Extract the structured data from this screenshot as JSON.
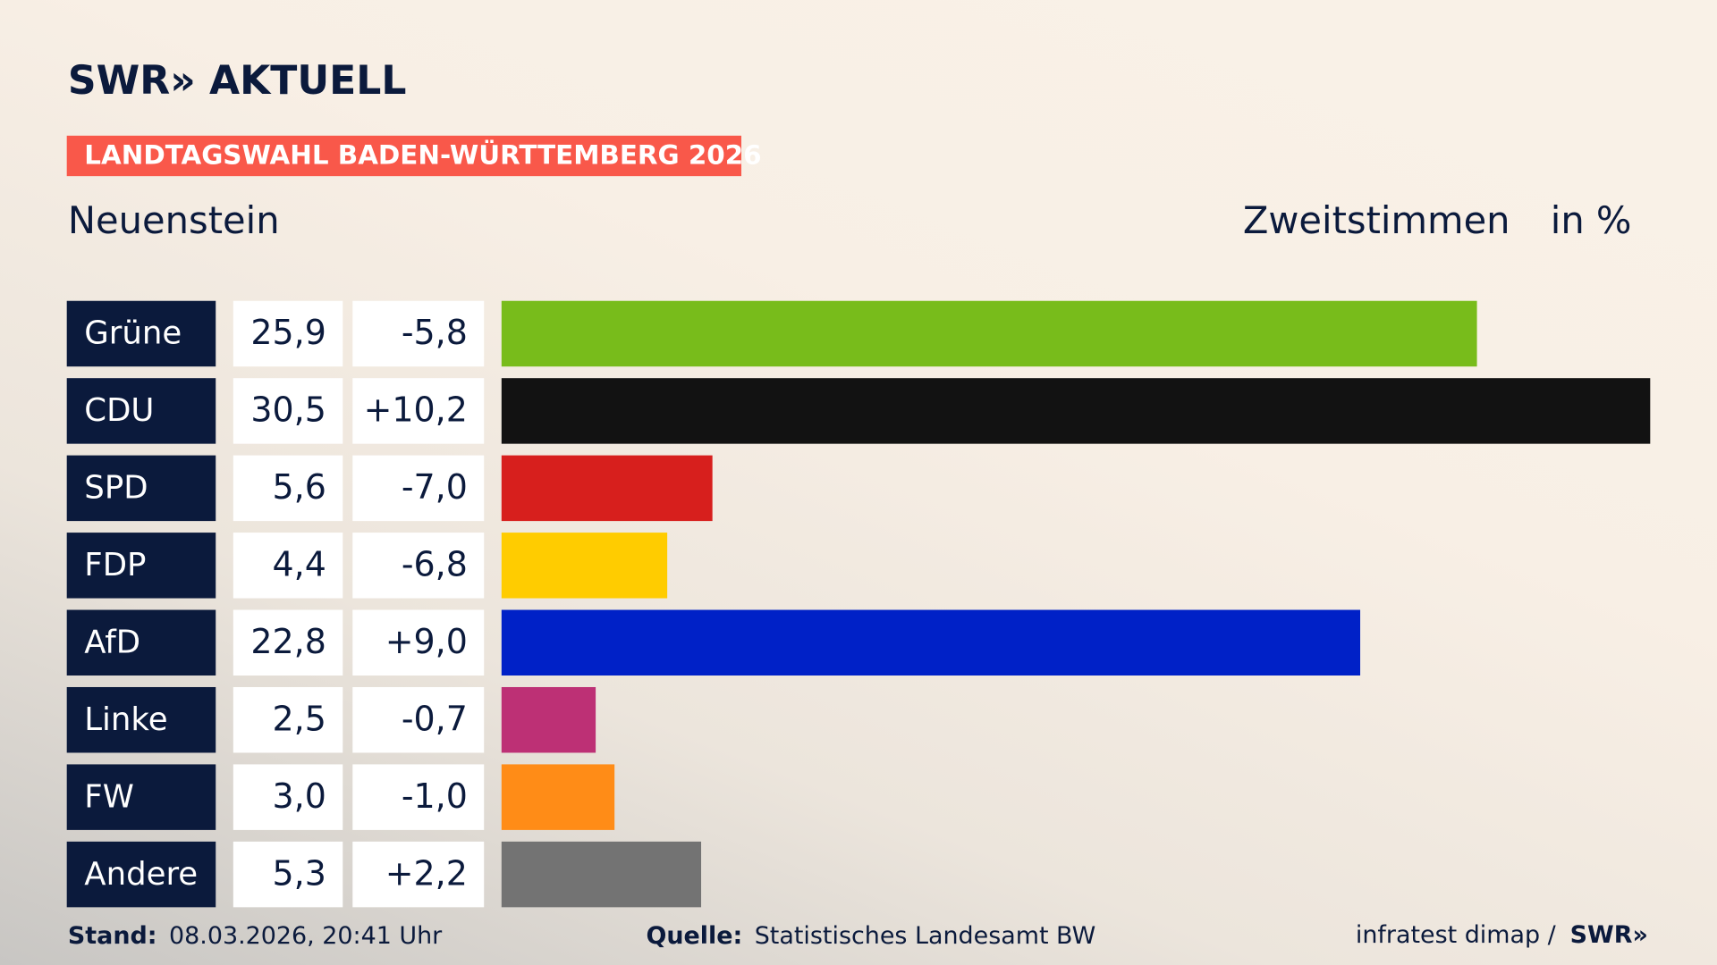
{
  "header": {
    "brand": "SWR» AKTUELL",
    "banner": "LANDTAGSWAHL BADEN-WÜRTTEMBERG 2026"
  },
  "chart_data": {
    "type": "bar",
    "orientation": "horizontal",
    "subtitle": "Neuenstein",
    "measure": "Zweitstimmen",
    "unit": "in %",
    "categories": [
      "Grüne",
      "CDU",
      "SPD",
      "FDP",
      "AfD",
      "Linke",
      "FW",
      "Andere"
    ],
    "values": [
      25.9,
      30.5,
      5.6,
      4.4,
      22.8,
      2.5,
      3.0,
      5.3
    ],
    "value_labels": [
      "25,9",
      "30,5",
      "5,6",
      "4,4",
      "22,8",
      "2,5",
      "3,0",
      "5,3"
    ],
    "changes": [
      -5.8,
      10.2,
      -7.0,
      -6.8,
      9.0,
      -0.7,
      -1.0,
      2.2
    ],
    "change_labels": [
      "-5,8",
      "+10,2",
      "-7,0",
      "-6,8",
      "+9,0",
      "-0,7",
      "-1,0",
      "+2,2"
    ],
    "colors": [
      "#78bc1b",
      "#121212",
      "#d71f1d",
      "#ffcc00",
      "#0021c7",
      "#bd3075",
      "#ff8c17",
      "#737373"
    ]
  },
  "footer": {
    "stand_label": "Stand:",
    "stand": "08.03.2026, 20:41 Uhr",
    "source_label": "Quelle:",
    "source": "Statistisches Landesamt BW",
    "institute": "infratest dimap /",
    "brand": "SWR»"
  }
}
